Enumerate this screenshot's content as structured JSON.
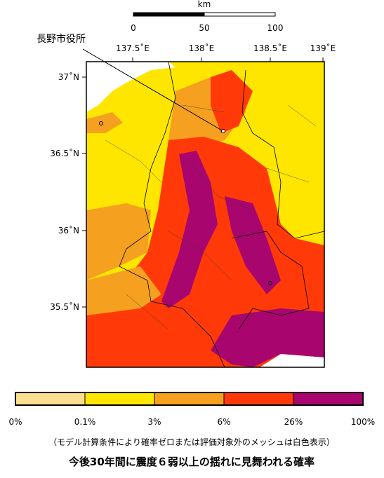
{
  "scale_bar": {
    "unit": "km",
    "ticks": [
      "0",
      "50",
      "100"
    ]
  },
  "longitude_labels": [
    "137.5˚E",
    "138˚E",
    "138.5˚E",
    "139˚E"
  ],
  "latitude_labels": [
    "37˚N",
    "36.5˚N",
    "36˚N",
    "35.5˚N"
  ],
  "marker_label": "長野市役所",
  "legend": {
    "colors": [
      "#fbdf8e",
      "#ffe600",
      "#f5a01e",
      "#ff3a08",
      "#a8066e"
    ],
    "labels": [
      "0%",
      "0.1%",
      "3%",
      "6%",
      "26%",
      "100%"
    ]
  },
  "note": "（モデル計算条件により確率ゼロまたは評価対象外のメッシュは白色表示）",
  "title": "今後30年間に震度６弱以上の揺れに見舞われる確率"
}
